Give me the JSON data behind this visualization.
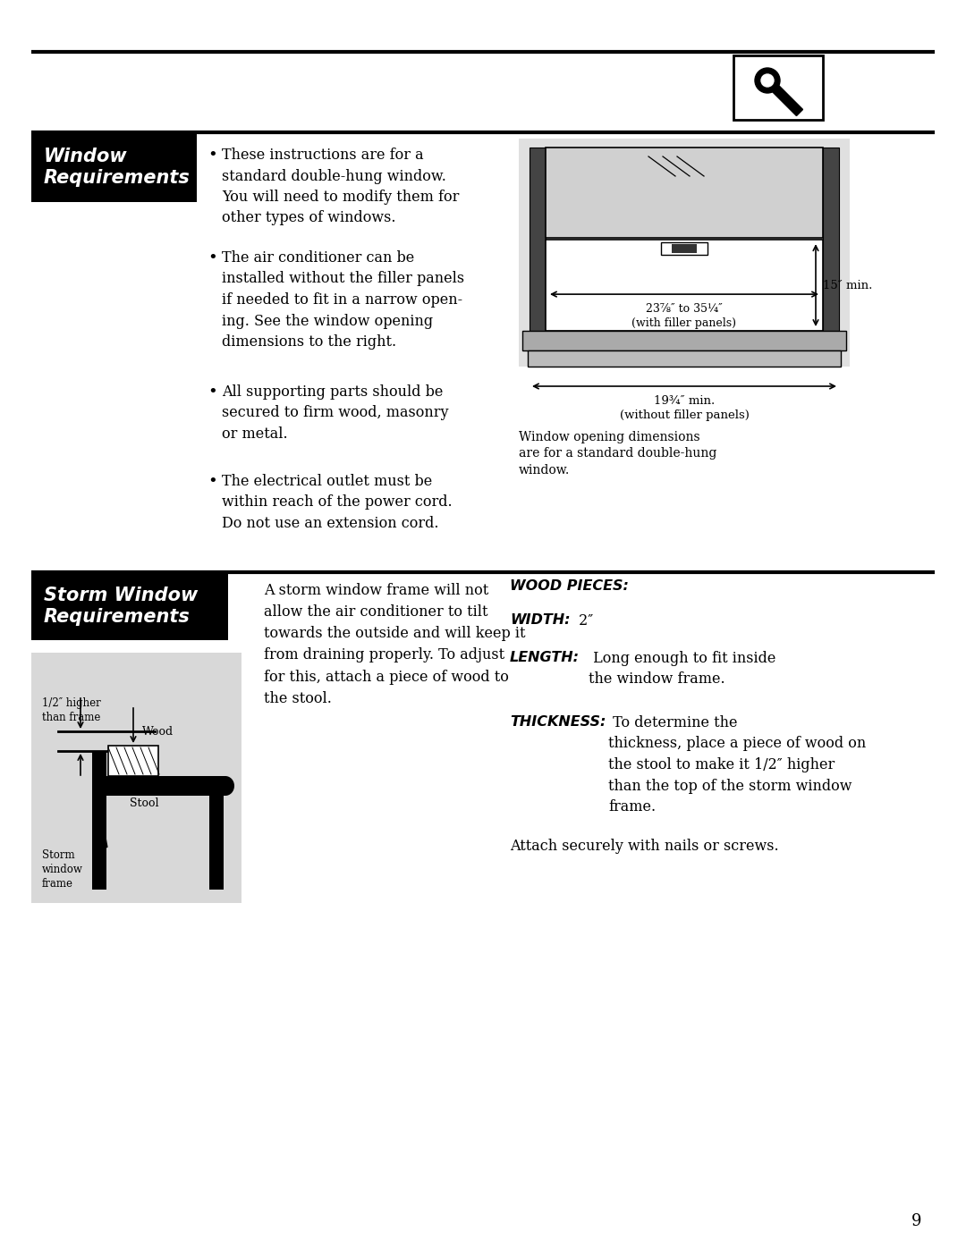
{
  "bg_color": "#ffffff",
  "page_number": "9",
  "section1_title": "Window\nRequirements",
  "section2_title": "Storm Window\nRequirements",
  "bullet1": "These instructions are for a\nstandard double-hung window.\nYou will need to modify them for\nother types of windows.",
  "bullet2": "The air conditioner can be\ninstalled without the filler panels\nif needed to fit in a narrow open-\ning. See the window opening\ndimensions to the right.",
  "bullet3": "All supporting parts should be\nsecured to firm wood, masonry\nor metal.",
  "bullet4": "The electrical outlet must be\nwithin reach of the power cord.\nDo not use an extension cord.",
  "diagram1_label_vert": "15″ min.",
  "diagram1_label_horiz": "23⅞″ to 35¼″\n(with filler panels)",
  "diagram1_label_below": "19¾″ min.\n(without filler panels)",
  "diagram1_caption": "Window opening dimensions\nare for a standard double-hung\nwindow.",
  "storm_text": "A storm window frame will not\nallow the air conditioner to tilt\ntowards the outside and will keep it\nfrom draining properly. To adjust\nfor this, attach a piece of wood to\nthe stool.",
  "wood_pieces": "WOOD PIECES:",
  "width_bold": "WIDTH:",
  "width_normal": " 2″",
  "length_bold": "LENGTH:",
  "length_normal": " Long enough to fit inside\nthe window frame.",
  "thickness_bold": "THICKNESS:",
  "thickness_normal": " To determine the\nthickness, place a piece of wood on\nthe stool to make it 1/2″ higher\nthan the top of the storm window\nframe.",
  "attach": "Attach securely with nails or screws.",
  "diag2_label_half": "1/2″ higher\nthan frame",
  "diag2_label_wood": "Wood",
  "diag2_label_stool": "Stool",
  "diag2_label_frame": "Storm\nwindow\nframe"
}
